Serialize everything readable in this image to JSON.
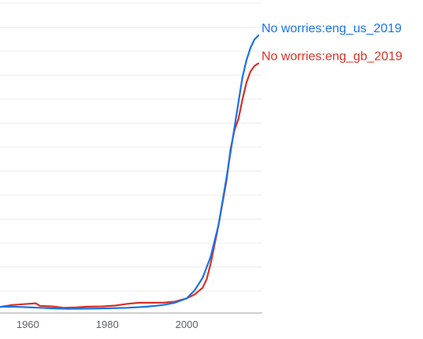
{
  "chart_data": {
    "type": "line",
    "title": "",
    "xlabel": "",
    "ylabel": "",
    "xlim": [
      1953,
      2019
    ],
    "ylim": [
      0,
      100
    ],
    "x_ticks": [
      1960,
      1980,
      2000
    ],
    "grid": true,
    "legend": "right-end-labels",
    "series": [
      {
        "name": "No worries:eng_us_2019",
        "color": "#1a73e8",
        "points": [
          [
            1953,
            0.5
          ],
          [
            1956,
            0.6
          ],
          [
            1960,
            0.4
          ],
          [
            1963,
            0.2
          ],
          [
            1966,
            0.0
          ],
          [
            1970,
            -0.2
          ],
          [
            1975,
            -0.1
          ],
          [
            1980,
            0.0
          ],
          [
            1985,
            0.2
          ],
          [
            1990,
            0.6
          ],
          [
            1994,
            1.2
          ],
          [
            1997,
            2.0
          ],
          [
            2000,
            3.6
          ],
          [
            2002,
            6.5
          ],
          [
            2004,
            11
          ],
          [
            2006,
            18.5
          ],
          [
            2008,
            30
          ],
          [
            2010,
            47
          ],
          [
            2011,
            56
          ],
          [
            2012,
            65
          ],
          [
            2013,
            74
          ],
          [
            2014,
            83
          ],
          [
            2015,
            89
          ],
          [
            2016,
            93.5
          ],
          [
            2017,
            96.5
          ],
          [
            2018,
            98
          ]
        ]
      },
      {
        "name": "No worries:eng_gb_2019",
        "color": "#d93025",
        "points": [
          [
            1953,
            0.5
          ],
          [
            1956,
            1.2
          ],
          [
            1959,
            1.5
          ],
          [
            1962,
            1.8
          ],
          [
            1963,
            0.9
          ],
          [
            1966,
            0.7
          ],
          [
            1969,
            0.2
          ],
          [
            1972,
            0.3
          ],
          [
            1975,
            0.6
          ],
          [
            1979,
            0.7
          ],
          [
            1982,
            1.0
          ],
          [
            1985,
            1.6
          ],
          [
            1988,
            2.0
          ],
          [
            1991,
            2.0
          ],
          [
            1994,
            2.0
          ],
          [
            1997,
            2.4
          ],
          [
            2000,
            3.6
          ],
          [
            2002,
            5.0
          ],
          [
            2004,
            7.4
          ],
          [
            2005,
            10.5
          ],
          [
            2006,
            16
          ],
          [
            2008,
            30
          ],
          [
            2010,
            46
          ],
          [
            2011,
            57
          ],
          [
            2012,
            64
          ],
          [
            2013,
            68
          ],
          [
            2014,
            75
          ],
          [
            2015,
            81
          ],
          [
            2016,
            85
          ],
          [
            2017,
            87
          ],
          [
            2018,
            88
          ]
        ]
      }
    ]
  }
}
